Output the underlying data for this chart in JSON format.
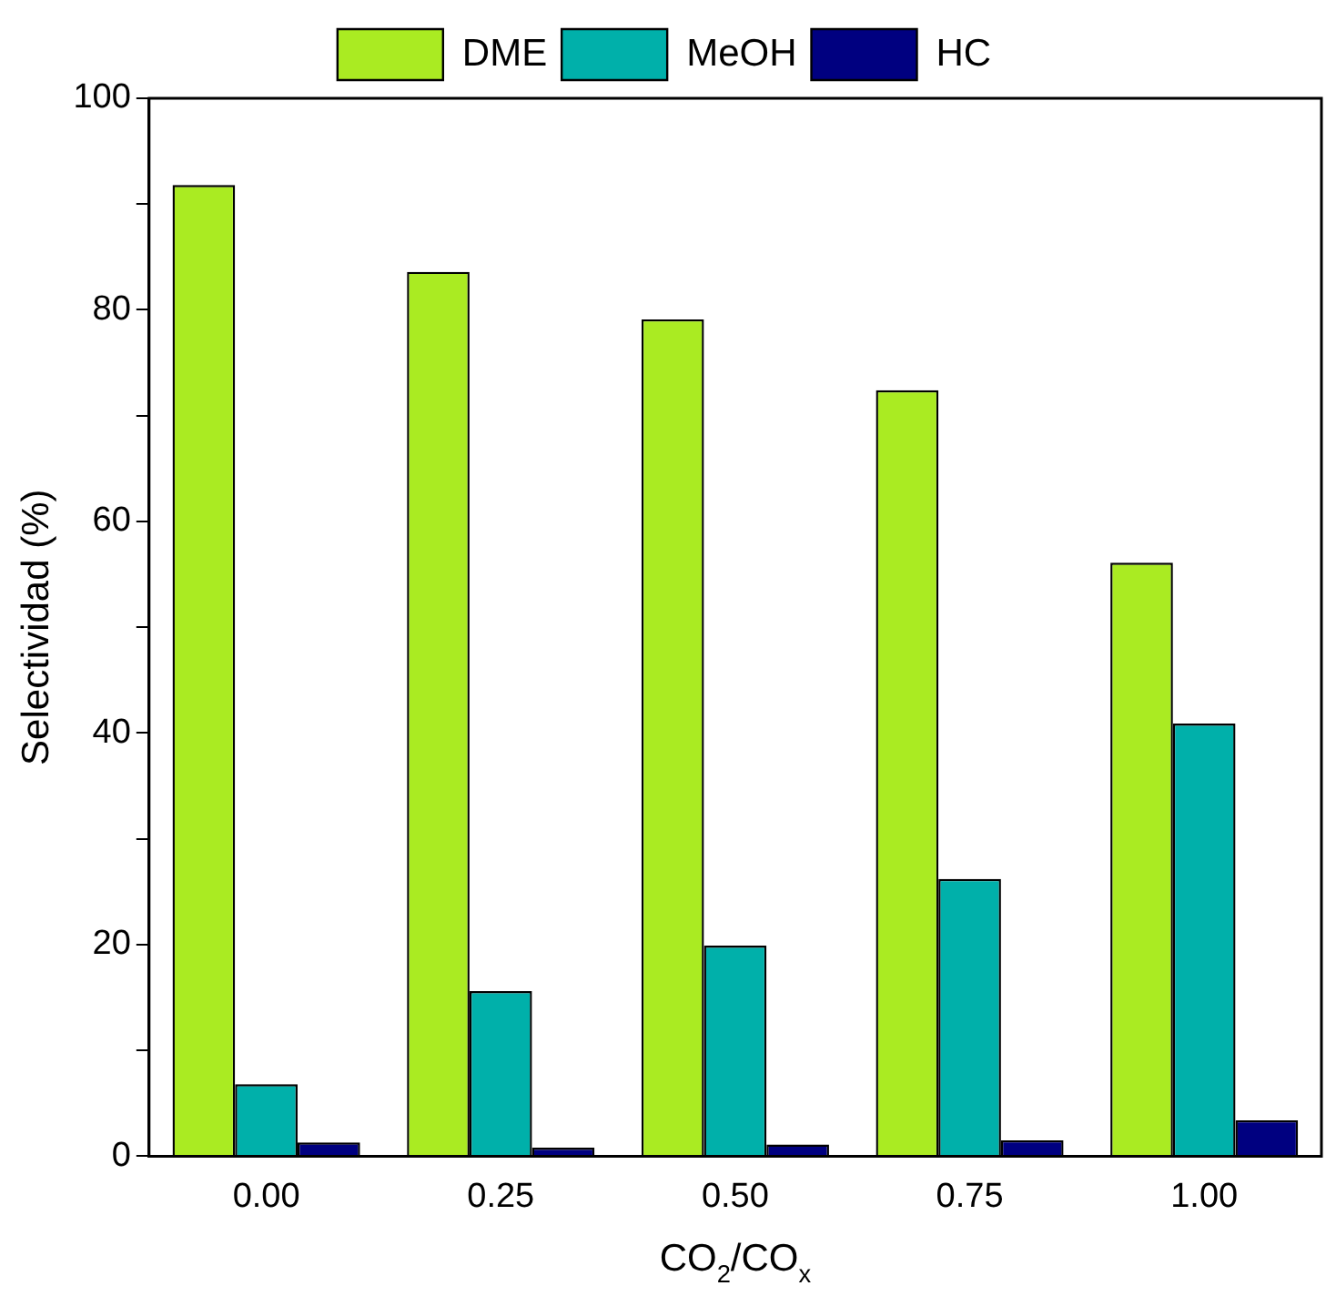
{
  "chart_data": {
    "type": "bar",
    "xlabel": "CO$_{2}$/CO$_{x}$",
    "ylabel": "Selectividad (%)",
    "categories": [
      "0.00",
      "0.25",
      "0.50",
      "0.75",
      "1.00"
    ],
    "series": [
      {
        "name": "DME",
        "color": "#aaeb22",
        "values": [
          91.8,
          83.6,
          79.1,
          72.4,
          56.1
        ]
      },
      {
        "name": "MeOH",
        "color": "#00b0aa",
        "values": [
          6.8,
          15.6,
          19.9,
          26.2,
          40.9
        ]
      },
      {
        "name": "HC",
        "color": "#000080",
        "values": [
          1.3,
          0.8,
          1.1,
          1.5,
          3.4
        ]
      }
    ],
    "ylim": [
      0,
      100
    ],
    "yticks": [
      0,
      {
        "value": 10,
        "label": null
      },
      20,
      {
        "value": 30,
        "label": null
      },
      40,
      {
        "value": 50,
        "label": null
      },
      60,
      {
        "value": 70,
        "label": null
      },
      80,
      {
        "value": 90,
        "label": null
      },
      100
    ],
    "grid": false,
    "legend": "top"
  }
}
